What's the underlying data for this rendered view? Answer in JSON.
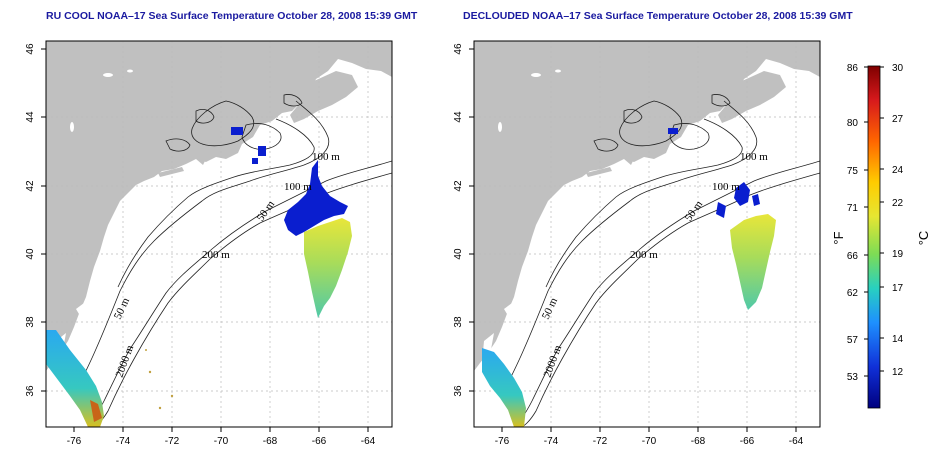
{
  "titles": {
    "left": "RU COOL NOAA–17 Sea Surface Temperature October 28, 2008 15:39 GMT",
    "right": "DECLOUDED NOAA–17 Sea Surface Temperature October 28, 2008 15:39 GMT"
  },
  "axes": {
    "x_ticks": [
      "-76",
      "-74",
      "-72",
      "-70",
      "-68",
      "-66",
      "-64"
    ],
    "y_ticks": [
      "36",
      "38",
      "40",
      "42",
      "44",
      "46"
    ]
  },
  "contour_labels": {
    "m100_a": "100 m",
    "m100_b": "100 m",
    "m50_a": "50 m",
    "m200": "200 m",
    "m50_b": "50 m",
    "m2000": "2000 m"
  },
  "colorbar": {
    "fahrenheit_ticks": [
      "86",
      "80",
      "75",
      "71",
      "66",
      "62",
      "57",
      "53"
    ],
    "celsius_ticks": [
      "30",
      "27",
      "24",
      "22",
      "19",
      "17",
      "14",
      "12"
    ],
    "fahrenheit_unit": "°F",
    "celsius_unit": "°C",
    "colors": [
      "#7f0000",
      "#d7191c",
      "#ff6600",
      "#ffcc00",
      "#e6e632",
      "#7ddc55",
      "#28d0c0",
      "#1e90ff",
      "#1030d8",
      "#00007f"
    ]
  },
  "colors": {
    "land": "#c0c0c0",
    "ocean": "#ffffff",
    "title": "#1a1aa0",
    "cold": "#0a1ecf"
  }
}
